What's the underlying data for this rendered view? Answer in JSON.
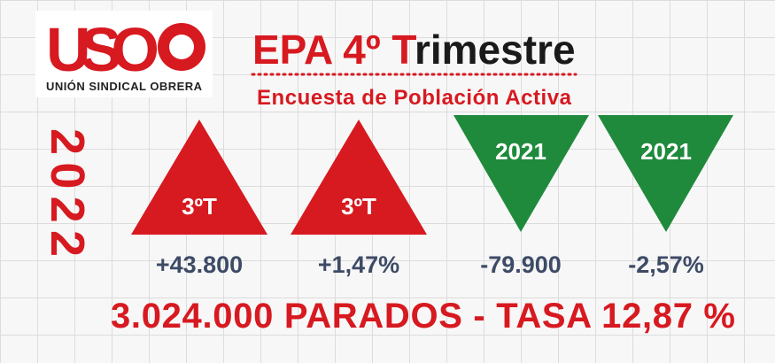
{
  "logo": {
    "text": "USO",
    "subtitle": "UNIÓN SINDICAL OBRERA"
  },
  "header": {
    "title_red": "EPA  4º T",
    "title_dark": "rimestre",
    "subtitle": "Encuesta de Población Activa"
  },
  "year": "2022",
  "indicators": [
    {
      "label": "3ºT",
      "value": "+43.800"
    },
    {
      "label": "3ºT",
      "value": "+1,47%"
    },
    {
      "label": "2021",
      "value": "-79.900"
    },
    {
      "label": "2021",
      "value": "-2,57%"
    }
  ],
  "footer": "3.024.000 PARADOS - TASA 12,87 %"
}
